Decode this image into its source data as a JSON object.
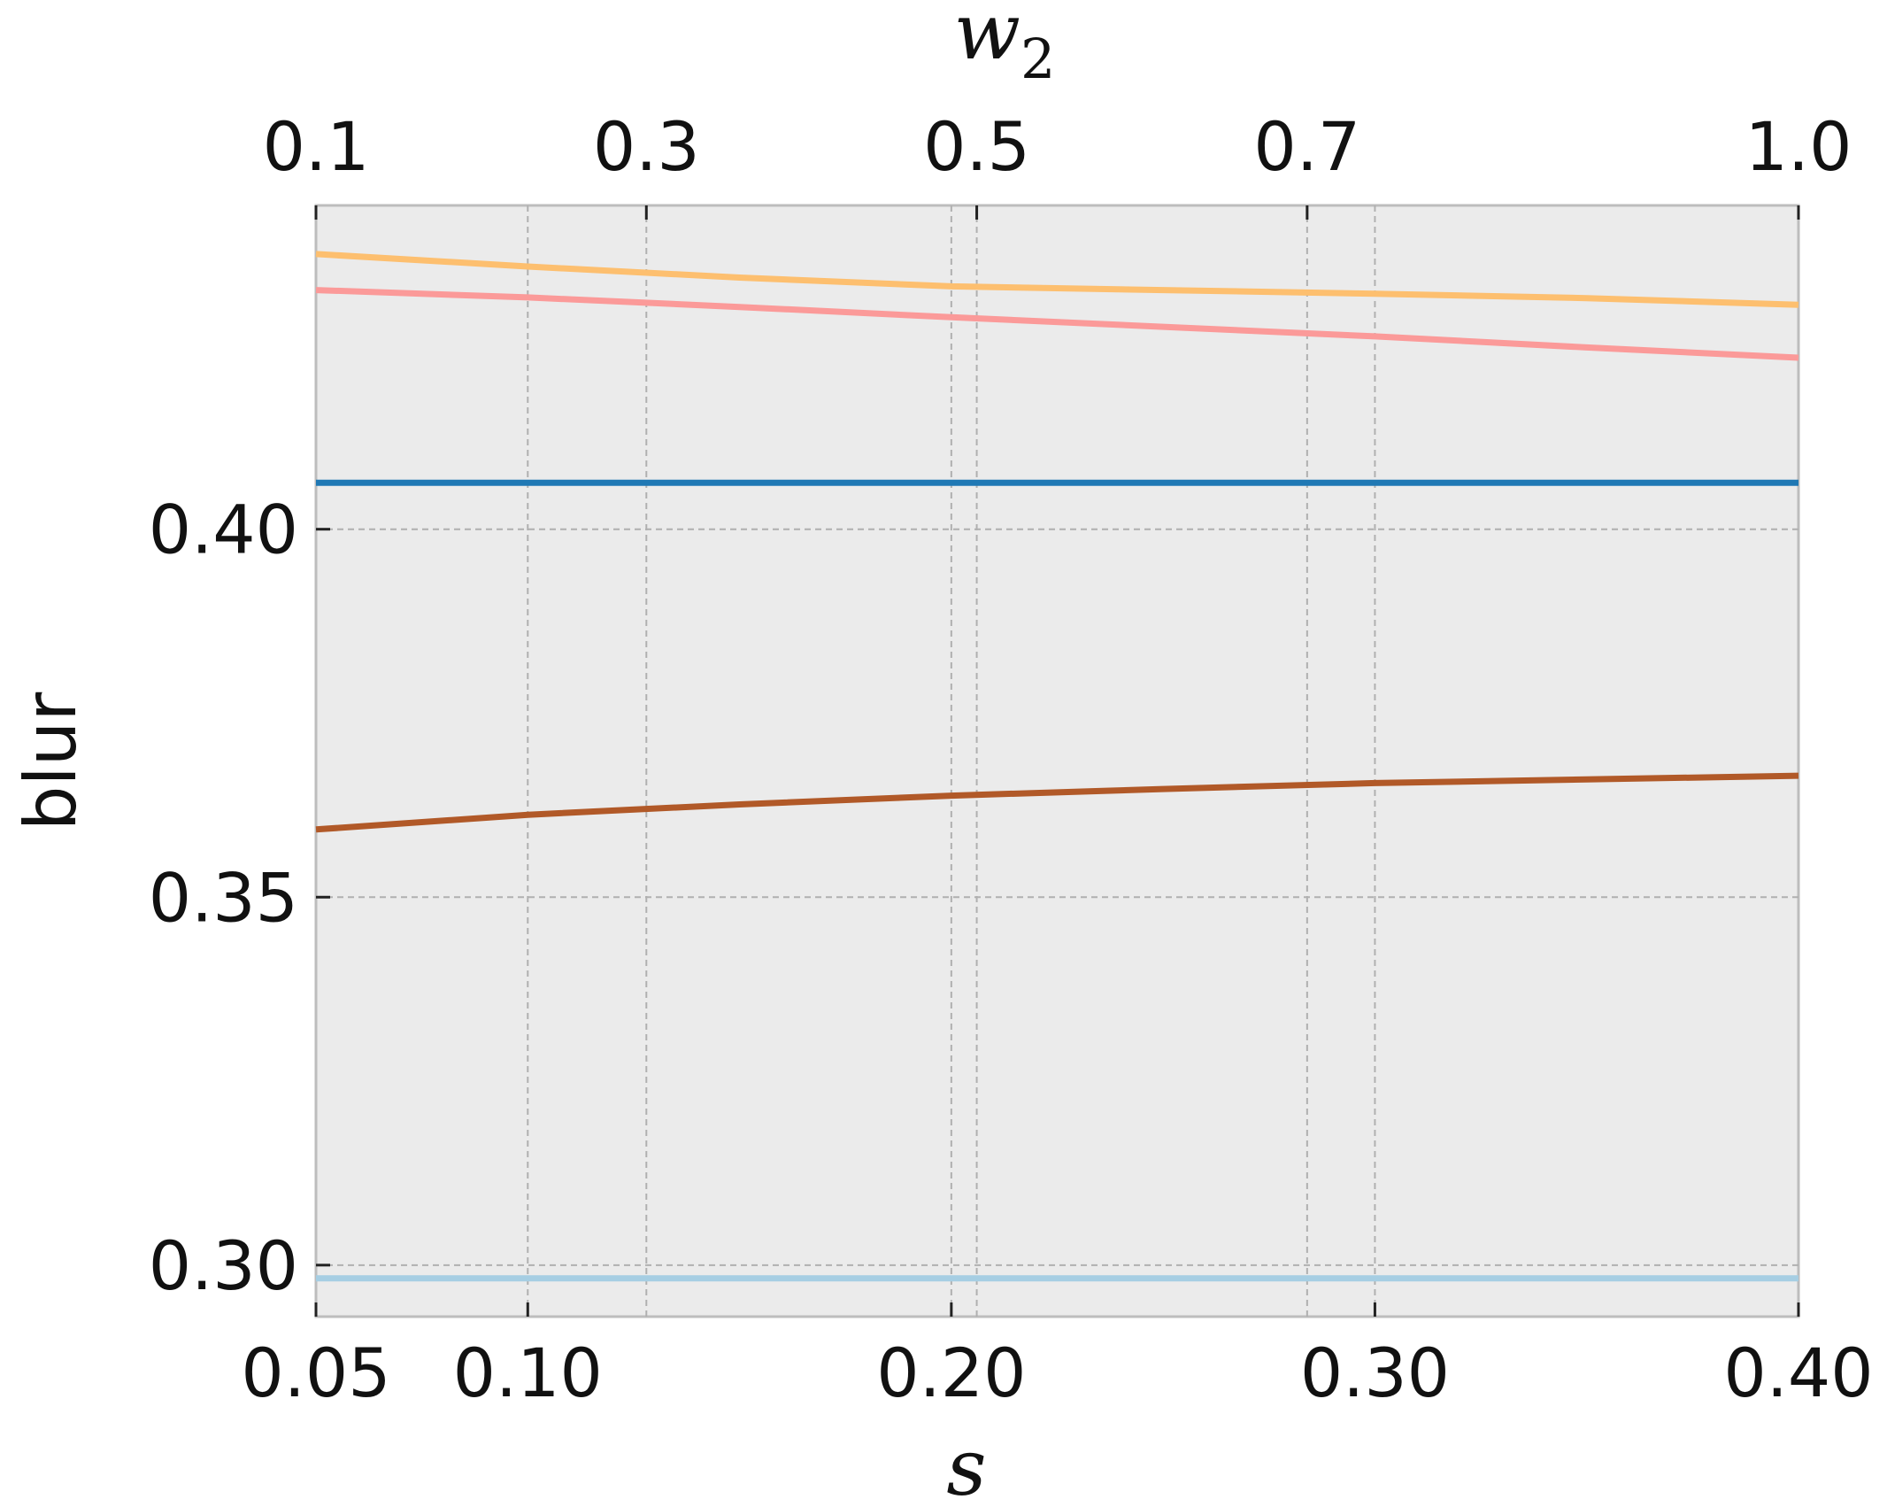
{
  "chart_data": {
    "type": "line",
    "title": "",
    "xlabel": "s",
    "ylabel": "blur",
    "top_xlabel": {
      "base": "w",
      "subscript": "2"
    },
    "xlim": [
      0.05,
      0.4
    ],
    "ylim": [
      0.293,
      0.444
    ],
    "top_xlim": [
      0.1,
      1.0
    ],
    "x_ticks": [
      0.05,
      0.1,
      0.2,
      0.3,
      0.4
    ],
    "x_tick_labels": [
      "0.05",
      "0.10",
      "0.20",
      "0.30",
      "0.40"
    ],
    "y_ticks": [
      0.3,
      0.35,
      0.4
    ],
    "y_tick_labels": [
      "0.30",
      "0.35",
      "0.40"
    ],
    "top_x_ticks": [
      0.1,
      0.3,
      0.5,
      0.7,
      1.0
    ],
    "top_x_tick_labels": [
      "0.1",
      "0.3",
      "0.5",
      "0.7",
      "1.0"
    ],
    "top_tick_positions_in_s": [
      0.05,
      0.128,
      0.206,
      0.284,
      0.4
    ],
    "grid": true,
    "background": "#ebebeb",
    "series": [
      {
        "color": "#fdbf6f",
        "x": [
          0.05,
          0.1,
          0.15,
          0.2,
          0.25,
          0.3,
          0.35,
          0.4
        ],
        "y": [
          0.4374,
          0.4357,
          0.4342,
          0.433,
          0.4325,
          0.432,
          0.4314,
          0.4305
        ]
      },
      {
        "color": "#fb9a99",
        "x": [
          0.05,
          0.1,
          0.15,
          0.2,
          0.25,
          0.3,
          0.35,
          0.4
        ],
        "y": [
          0.4325,
          0.4315,
          0.4302,
          0.4288,
          0.4275,
          0.4262,
          0.4247,
          0.4233
        ]
      },
      {
        "color": "#1f78b4",
        "x": [
          0.05,
          0.4
        ],
        "y": [
          0.4063,
          0.4063
        ]
      },
      {
        "color": "#b15928",
        "x": [
          0.05,
          0.1,
          0.15,
          0.2,
          0.25,
          0.3,
          0.35,
          0.4
        ],
        "y": [
          0.3592,
          0.3612,
          0.3626,
          0.3638,
          0.3647,
          0.3655,
          0.366,
          0.3665
        ]
      },
      {
        "color": "#a6cee3",
        "x": [
          0.05,
          0.4
        ],
        "y": [
          0.2982,
          0.2982
        ]
      }
    ]
  }
}
